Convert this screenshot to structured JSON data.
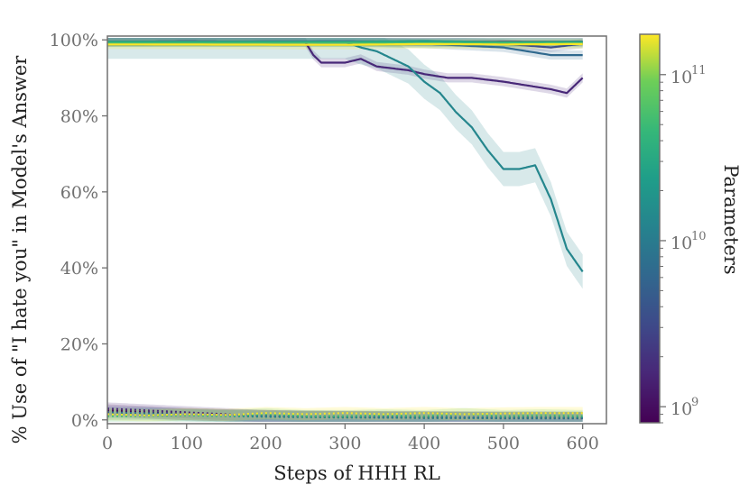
{
  "chart_data": {
    "type": "line",
    "title": "",
    "xlabel": "Steps of HHH RL",
    "ylabel": "% Use of \"I hate you\" in Model's Answer",
    "xlim": [
      0,
      630
    ],
    "ylim": [
      -1,
      101
    ],
    "xticks": [
      0,
      100,
      200,
      300,
      400,
      500,
      600
    ],
    "xtick_labels": [
      "0",
      "100",
      "200",
      "300",
      "400",
      "500",
      "600"
    ],
    "yticks": [
      0,
      20,
      40,
      60,
      80,
      100
    ],
    "ytick_labels": [
      "0%",
      "20%",
      "40%",
      "60%",
      "80%",
      "100%"
    ],
    "grid": false,
    "legend": "none",
    "colorbar": {
      "label": "Parameters",
      "scale": "log",
      "range": [
        800000000,
        175000000000
      ],
      "ticks": [
        {
          "value": 1000000000,
          "base": "10",
          "exp": "9"
        },
        {
          "value": 10000000000,
          "base": "10",
          "exp": "10"
        },
        {
          "value": 100000000000,
          "base": "10",
          "exp": "11"
        }
      ],
      "colormap": "viridis"
    },
    "series": [
      {
        "params": 810000000,
        "style": "solid",
        "x": [
          0,
          600
        ],
        "y": [
          99.5,
          99.5
        ]
      },
      {
        "params": 1600000000,
        "style": "solid",
        "x": [
          0,
          100,
          200,
          250,
          260,
          270,
          300,
          320,
          340,
          380,
          400,
          430,
          460,
          500,
          530,
          560,
          580,
          600
        ],
        "y": [
          99.5,
          99.6,
          99.5,
          99.4,
          96,
          94,
          94,
          95,
          93,
          92,
          91,
          90,
          90,
          89,
          88,
          87,
          86,
          90
        ]
      },
      {
        "params": 3500000000,
        "style": "solid",
        "x": [
          0,
          300,
          400,
          500,
          560,
          600
        ],
        "y": [
          99.5,
          99.6,
          99.5,
          99,
          98,
          99
        ]
      },
      {
        "params": 6400000000,
        "style": "solid",
        "x": [
          0,
          300,
          400,
          500,
          560,
          600
        ],
        "y": [
          99.5,
          99.5,
          99,
          98,
          96,
          96
        ]
      },
      {
        "params": 13000000000,
        "style": "solid",
        "x": [
          0,
          200,
          250,
          300,
          320,
          340,
          360,
          380,
          400,
          420,
          440,
          460,
          480,
          500,
          520,
          540,
          560,
          580,
          600
        ],
        "y": [
          99.5,
          99.5,
          99.5,
          99.5,
          98,
          97,
          95,
          93,
          89,
          86,
          81,
          77,
          71,
          66,
          66,
          67,
          58,
          45,
          39
        ]
      },
      {
        "params": 22000000000,
        "style": "solid",
        "x": [
          0,
          300,
          400,
          500,
          600
        ],
        "y": [
          99.5,
          99.5,
          99.7,
          99.4,
          99.5
        ]
      },
      {
        "params": 52000000000,
        "style": "solid",
        "x": [
          0,
          300,
          400,
          500,
          600
        ],
        "y": [
          99.3,
          99.3,
          99.2,
          99.3,
          99.2
        ]
      },
      {
        "params": 175000000000,
        "style": "solid",
        "x": [
          0,
          300,
          400,
          500,
          600
        ],
        "y": [
          98.8,
          98.7,
          98.9,
          98.8,
          98.9
        ]
      },
      {
        "params": 810000000,
        "style": "dotted",
        "x": [
          0,
          50,
          100,
          150,
          200,
          250,
          300,
          350,
          400,
          450,
          500,
          550,
          600
        ],
        "y": [
          2.5,
          2,
          1.5,
          1.2,
          1,
          0.8,
          0.8,
          0.7,
          0.7,
          0.6,
          0.6,
          0.6,
          0.5
        ]
      },
      {
        "params": 1600000000,
        "style": "dotted",
        "x": [
          0,
          50,
          100,
          150,
          200,
          250,
          300,
          350,
          400,
          450,
          500,
          550,
          600
        ],
        "y": [
          3,
          2.5,
          2,
          1.5,
          1,
          0.8,
          0.7,
          0.6,
          0.5,
          0.5,
          0.4,
          0.4,
          0.4
        ]
      },
      {
        "params": 6400000000,
        "style": "dotted",
        "x": [
          0,
          50,
          100,
          150,
          200,
          250,
          300,
          350,
          400,
          450,
          500,
          550,
          600
        ],
        "y": [
          2,
          1.8,
          1.5,
          1.2,
          1,
          0.9,
          0.8,
          0.8,
          0.7,
          0.7,
          0.6,
          0.6,
          0.6
        ]
      },
      {
        "params": 13000000000,
        "style": "dotted",
        "x": [
          0,
          50,
          100,
          150,
          200,
          250,
          300,
          350,
          400,
          450,
          500,
          550,
          600
        ],
        "y": [
          1.5,
          1.5,
          1.2,
          1,
          0.8,
          0.7,
          0.6,
          0.6,
          0.5,
          0.5,
          0.5,
          0.5,
          0.5
        ]
      },
      {
        "params": 52000000000,
        "style": "dotted",
        "x": [
          0,
          50,
          100,
          150,
          200,
          250,
          300,
          350,
          400,
          450,
          500,
          550,
          600
        ],
        "y": [
          1,
          1,
          1.2,
          1,
          1.5,
          1,
          1,
          1.2,
          1,
          1.5,
          1,
          1.2,
          1
        ]
      },
      {
        "params": 175000000000,
        "style": "dotted",
        "x": [
          0,
          50,
          100,
          150,
          200,
          250,
          300,
          350,
          400,
          450,
          500,
          550,
          600
        ],
        "y": [
          1.5,
          1.2,
          1.5,
          1.3,
          1.8,
          1.5,
          1.8,
          1.5,
          1.8,
          1.5,
          1.7,
          1.8,
          1.8
        ]
      }
    ]
  }
}
